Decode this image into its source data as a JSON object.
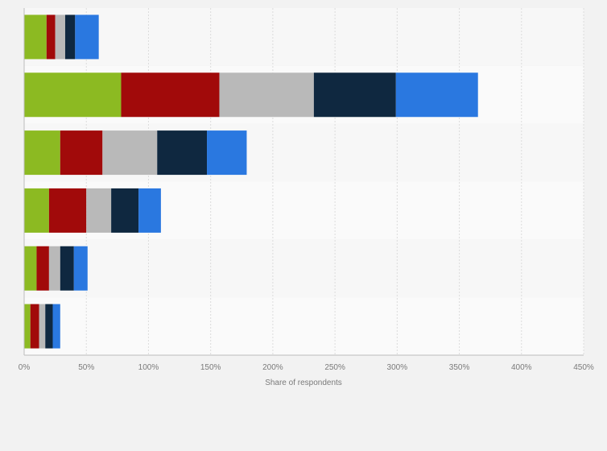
{
  "chart_data": {
    "type": "bar",
    "orientation": "horizontal",
    "stacked": true,
    "title": "",
    "xlabel": "Share of respondents",
    "ylabel": "",
    "xlim": [
      0,
      450
    ],
    "grid": true,
    "legend": "none",
    "x_ticks": [
      "0%",
      "50%",
      "100%",
      "150%",
      "200%",
      "250%",
      "300%",
      "350%",
      "400%",
      "450%"
    ],
    "categories": [
      "",
      "",
      "",
      "",
      "",
      ""
    ],
    "series": [
      {
        "color": "#8cba22",
        "values": [
          18,
          78,
          29,
          20,
          10,
          5
        ]
      },
      {
        "color": "#a10a0a",
        "values": [
          7,
          79,
          34,
          30,
          10,
          7
        ]
      },
      {
        "color": "#b9b9b9",
        "values": [
          8,
          76,
          44,
          20,
          9,
          5
        ]
      },
      {
        "color": "#0f2840",
        "values": [
          8,
          66,
          40,
          22,
          11,
          6
        ]
      },
      {
        "color": "#2a78e0",
        "values": [
          19,
          66,
          32,
          18,
          11,
          6
        ]
      }
    ]
  },
  "colors": {
    "band_alt": "#f7f7f7",
    "band": "#fafafa",
    "grid": "#dcdcdc",
    "axis": "#bcbcbc"
  }
}
